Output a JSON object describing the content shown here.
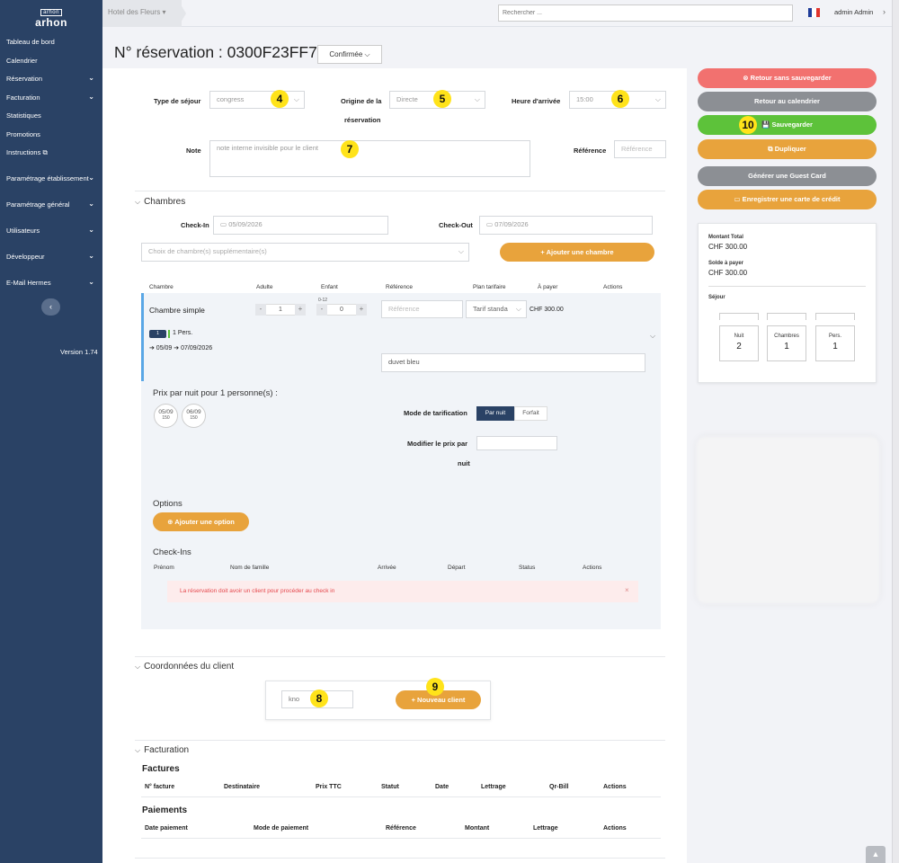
{
  "sidebar": {
    "logo_top": "arhon",
    "logo_main": "arhon",
    "items": [
      {
        "label": "Tableau de bord"
      },
      {
        "label": "Calendrier"
      },
      {
        "label": "Réservation"
      },
      {
        "label": "Facturation"
      },
      {
        "label": "Statistiques"
      },
      {
        "label": "Promotions"
      },
      {
        "label": "Instructions"
      },
      {
        "label": "Paramétrage établissement"
      },
      {
        "label": "Paramétrage général"
      },
      {
        "label": "Utilisateurs"
      },
      {
        "label": "Développeur"
      },
      {
        "label": "E-Mail Hermes"
      }
    ],
    "collapse_glyph": "‹",
    "version": "Version 1.74"
  },
  "topbar": {
    "hotel": "Hotel des Fleurs ▾",
    "search_placeholder": "Rechercher ...",
    "user": "admin Admin",
    "user_chev": "›",
    "flag_colors": [
      "#1f3c99",
      "#ffffff",
      "#e1342c"
    ]
  },
  "header": {
    "title": "N° réservation : 0300F23FF7 -",
    "status": "Confirmée ⌵"
  },
  "stay": {
    "type_label": "Type de séjour",
    "type_value": "congress",
    "origin_label_1": "Origine de la",
    "origin_label_2": "réservation",
    "origin_value": "Directe",
    "arrival_label": "Heure d'arrivée",
    "arrival_value": "15:00",
    "note_label": "Note",
    "note_placeholder": "note interne invisible pour le client",
    "reference_label": "Référence",
    "reference_placeholder": "Référence",
    "dd": "⌵"
  },
  "badges": {
    "b4": "4",
    "b5": "5",
    "b6": "6",
    "b7": "7",
    "b8": "8",
    "b9": "9",
    "b10": "10"
  },
  "rooms": {
    "section_title": "Chambres",
    "chev": "⌵",
    "checkin_label": "Check-In",
    "checkin_value": "05/09/2026",
    "checkout_label": "Check-Out",
    "checkout_value": "07/09/2026",
    "extra_placeholder": "Choix de chambre(s) supplémentaire(s)",
    "add_room": "+ Ajouter une chambre",
    "columns": [
      "Chambre",
      "Adulte",
      "Enfant",
      "Référence",
      "Plan tarifaire",
      "À payer",
      "Actions"
    ],
    "child_age": "0-12",
    "room_name": "Chambre simple",
    "adults": "1",
    "children": "0",
    "minus": "-",
    "plus": "+",
    "ref_placeholder": "Référence",
    "rate_plan": "Tarif standa",
    "to_pay": "CHF 300.00",
    "bed_tag": "1",
    "persons": "1 Pers.",
    "dates": "➔ 05/09 ➔ 07/09/2026",
    "room_note": "duvet bleu",
    "price_title": "Prix par nuit pour 1 personne(s) :",
    "nights": [
      {
        "date": "05/09",
        "price": "150"
      },
      {
        "date": "06/09",
        "price": "150"
      }
    ],
    "pricing_mode_label": "Mode de tarification",
    "mode_per_night": "Par nuit",
    "mode_flat": "Forfait",
    "modify_label_1": "Modifier le prix par",
    "modify_label_2": "nuit",
    "options_title": "Options",
    "add_option": "Ajouter une option",
    "checkins_title": "Check-Ins",
    "checkin_columns": [
      "Prénom",
      "Nom de famille",
      "Arrivée",
      "Départ",
      "Status",
      "Actions"
    ],
    "alert": "La réservation doit avoir un client pour procéder au check in",
    "alert_close": "×"
  },
  "client": {
    "section_title": "Coordonnées du client",
    "search_value": "kno",
    "new_client": "+ Nouveau client"
  },
  "billing": {
    "section_title": "Facturation",
    "invoices_title": "Factures",
    "invoice_columns": [
      "N° facture",
      "Destinataire",
      "Prix TTC",
      "Statut",
      "Date",
      "Lettrage",
      "Qr-Bill",
      "Actions"
    ],
    "payments_title": "Paiements",
    "payment_columns": [
      "Date paiement",
      "Mode de paiement",
      "Référence",
      "Montant",
      "Lettrage",
      "Actions"
    ]
  },
  "actions": {
    "back_no_save": "⊗ Retour sans sauvegarder",
    "back_calendar": "Retour au calendrier",
    "save": "💾 Sauvegarder",
    "duplicate": "⧉ Dupliquer",
    "guest_card": "Générer une Guest Card",
    "credit_card": "▭ Enregistrer une carte de crédit",
    "colors": {
      "red": "#f2716f",
      "grey": "#8c8f94",
      "green": "#5dc23a",
      "orange": "#e8a33c"
    }
  },
  "summary": {
    "total_label": "Montant Total",
    "total_value": "CHF 300.00",
    "balance_label": "Solde à payer",
    "balance_value": "CHF 300.00",
    "stay_label": "Séjour",
    "stats": [
      {
        "label": "Nuit",
        "value": "2"
      },
      {
        "label": "Chambres",
        "value": "1"
      },
      {
        "label": "Pers.",
        "value": "1"
      }
    ]
  },
  "scroll_top": "▲"
}
